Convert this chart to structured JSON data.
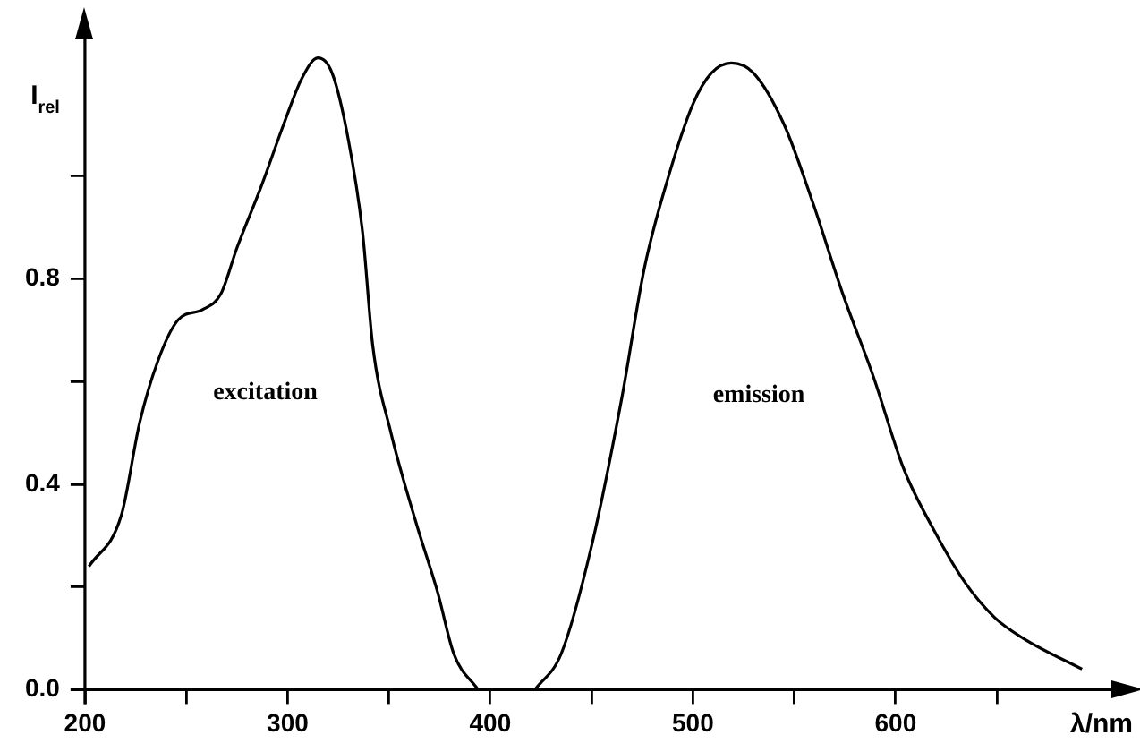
{
  "chart_data": {
    "type": "line",
    "xlabel": "λ/nm",
    "ylabel": "I$_{rel}$",
    "xlim": [
      200,
      710
    ],
    "ylim": [
      0,
      1.28
    ],
    "xticks": [
      200,
      {
        "value": 250,
        "label": null
      },
      300,
      {
        "value": 350,
        "label": null
      },
      400,
      {
        "value": 450,
        "label": null
      },
      500,
      {
        "value": 550,
        "label": null
      },
      600,
      {
        "value": 650,
        "label": null
      }
    ],
    "yticks": [
      {
        "value": 0,
        "label": "0.0"
      },
      {
        "value": 0.2,
        "label": null
      },
      0.4,
      {
        "value": 0.6,
        "label": null
      },
      0.8,
      {
        "value": 1.0,
        "label": null
      }
    ],
    "grid": false,
    "legend": false,
    "marker": "none",
    "line_style": "solid",
    "series": [
      {
        "name": "excitation",
        "color": "#000000",
        "x": [
          202,
          218,
          227,
          236,
          246,
          258,
          267,
          275,
          287,
          298,
          307,
          315,
          322,
          330,
          337,
          342,
          351,
          363,
          374,
          382,
          394
        ],
        "values": [
          0.24,
          0.34,
          0.52,
          0.64,
          0.72,
          0.74,
          0.77,
          0.86,
          0.98,
          1.1,
          1.19,
          1.23,
          1.2,
          1.07,
          0.89,
          0.67,
          0.5,
          0.33,
          0.19,
          0.07,
          0
        ]
      },
      {
        "name": "emission",
        "color": "#000000",
        "x": [
          422,
          435,
          450,
          465,
          476,
          488,
          500,
          509,
          519,
          530,
          545,
          559,
          574,
          589,
          604,
          619,
          634,
          649,
          663,
          692
        ],
        "values": [
          0,
          0.07,
          0.28,
          0.57,
          0.82,
          1.0,
          1.14,
          1.2,
          1.22,
          1.2,
          1.1,
          0.95,
          0.77,
          0.61,
          0.43,
          0.31,
          0.21,
          0.14,
          0.1,
          0.04
        ]
      }
    ]
  }
}
